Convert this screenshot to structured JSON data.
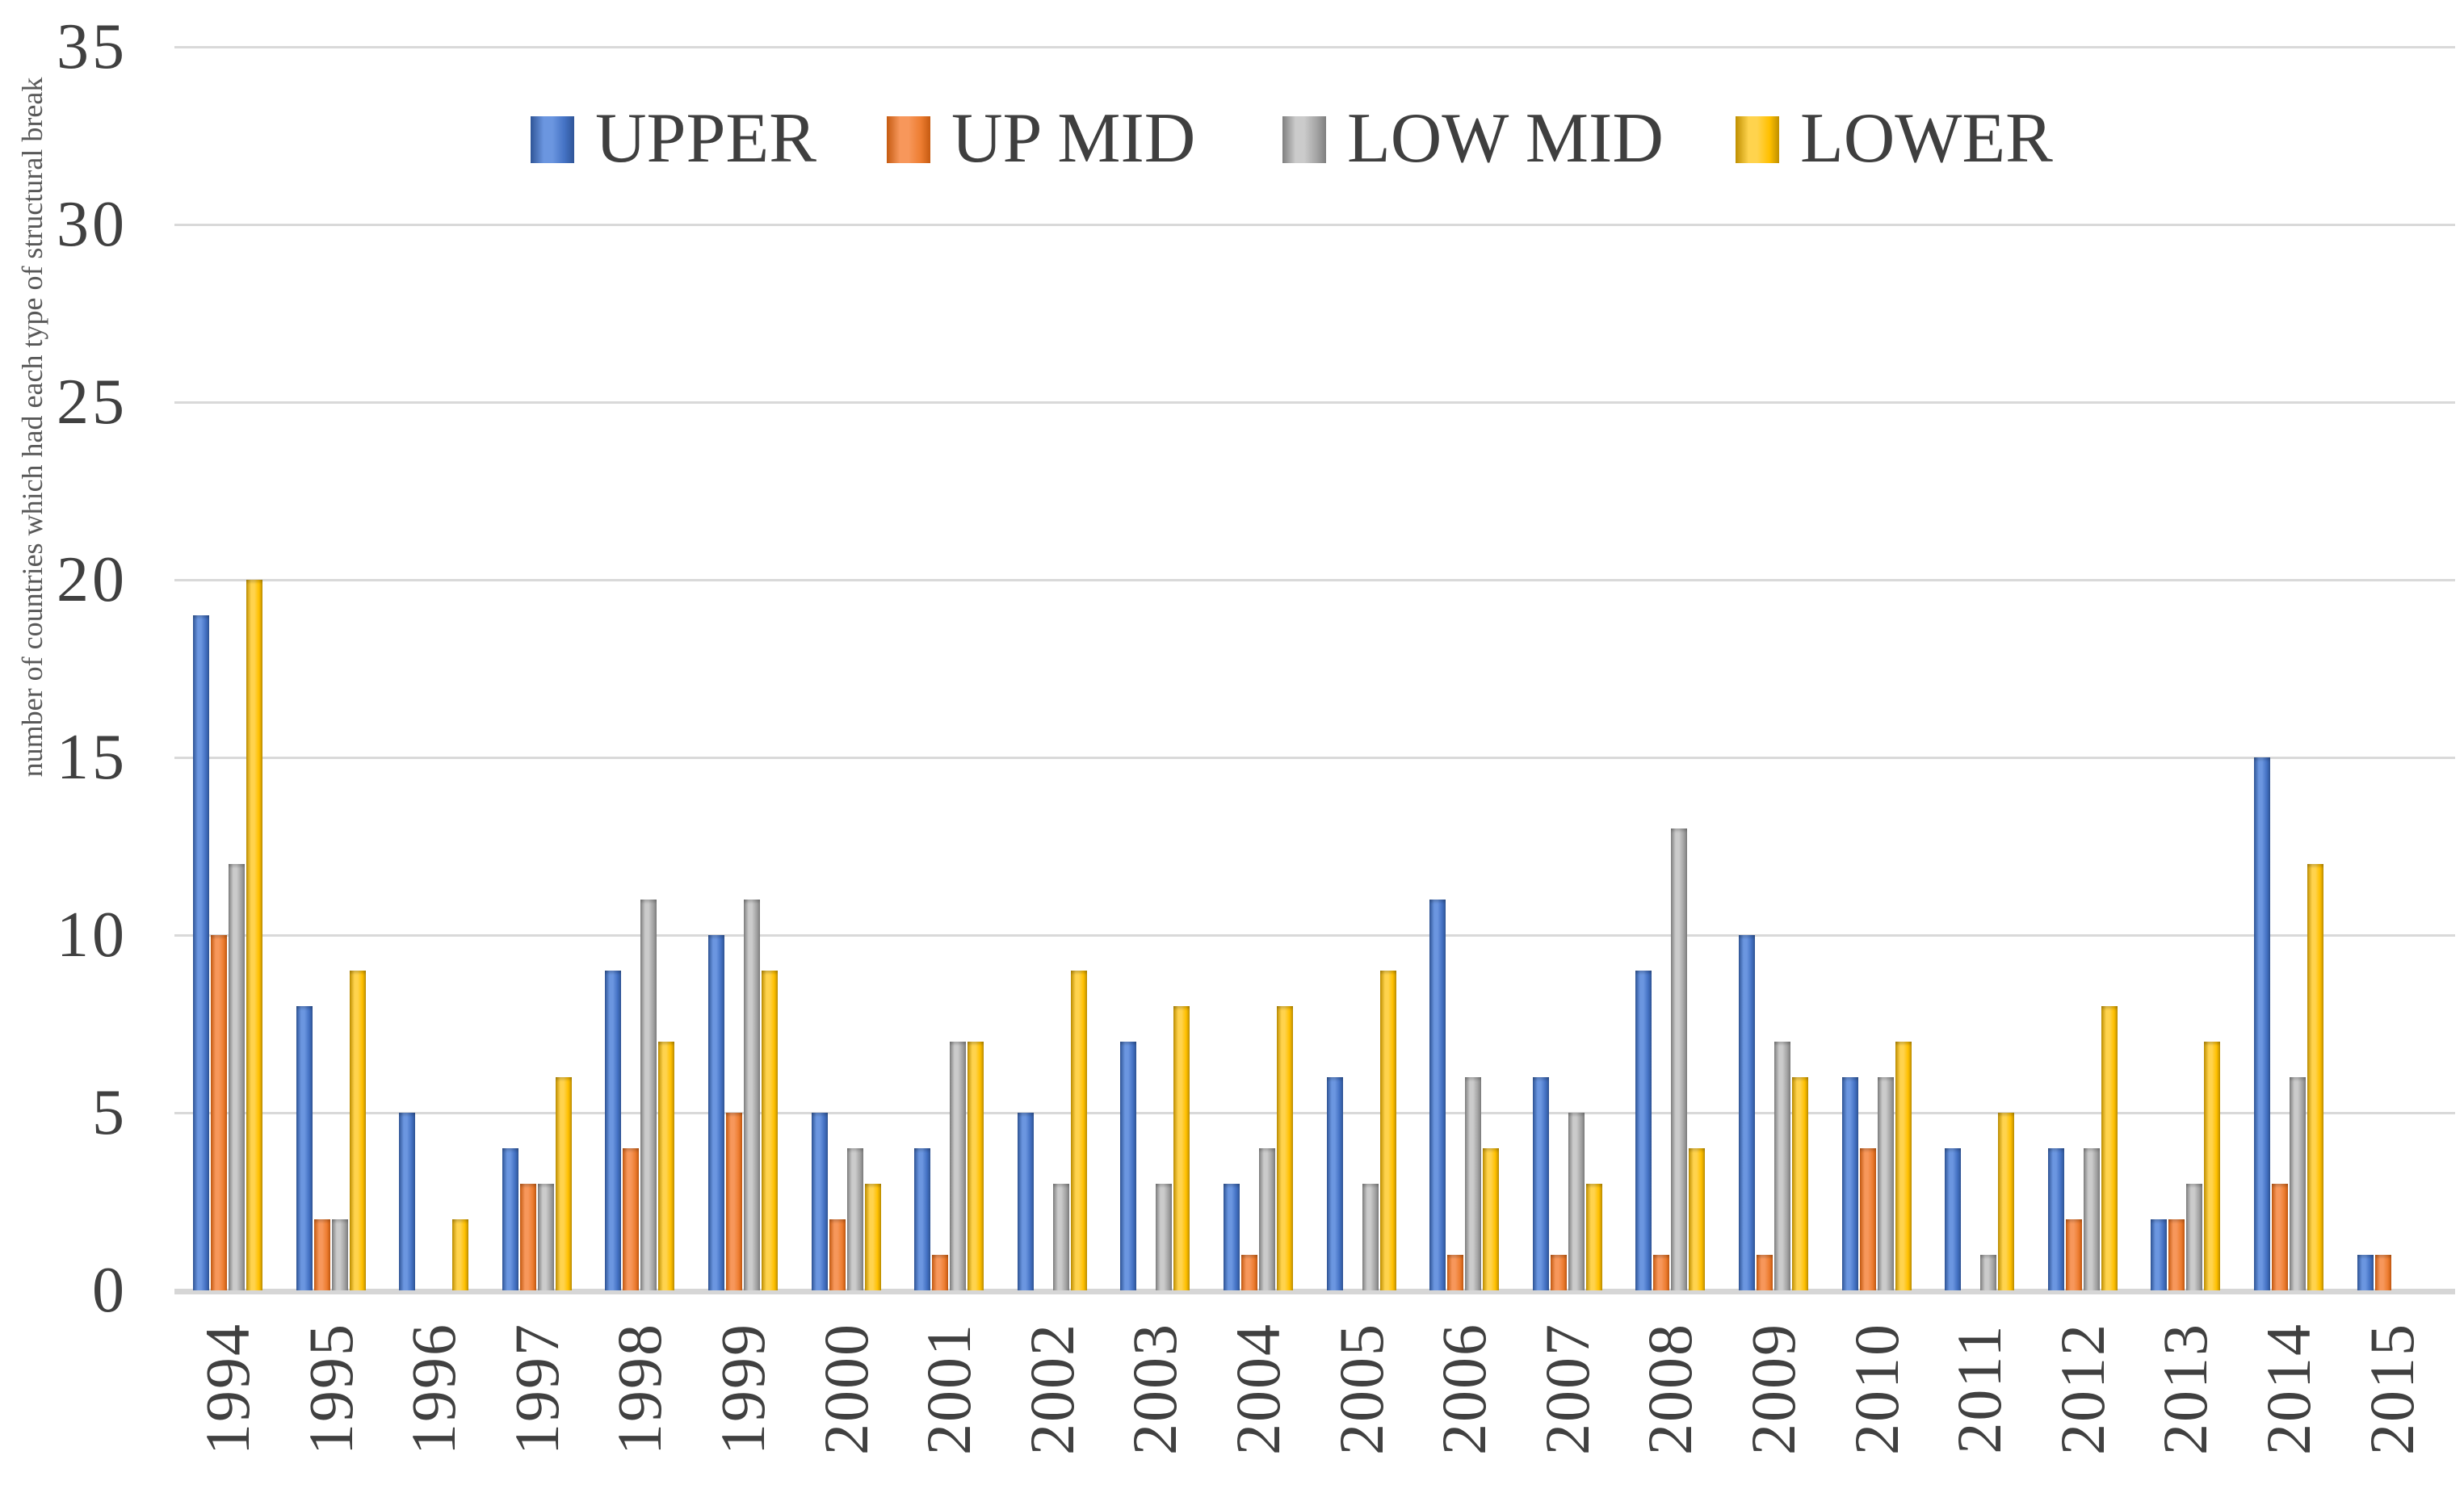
{
  "figure": {
    "background": "#ffffff",
    "gridline_color": "#d9d9d9",
    "text_color": "#404040"
  },
  "chart_data": {
    "type": "bar",
    "title": "",
    "xlabel": "",
    "ylabel": "number of countries which had each type of structural break",
    "ylim": [
      0,
      35
    ],
    "yticks": [
      0,
      5,
      10,
      15,
      20,
      25,
      30,
      35
    ],
    "grid": true,
    "legend_position": "top-center",
    "categories": [
      "1994",
      "1995",
      "1996",
      "1997",
      "1998",
      "1999",
      "2000",
      "2001",
      "2002",
      "2003",
      "2004",
      "2005",
      "2006",
      "2007",
      "2008",
      "2009",
      "2010",
      "2011",
      "2012",
      "2013",
      "2014",
      "2015"
    ],
    "series": [
      {
        "name": "UPPER",
        "color": "#4472C4",
        "color_dark": "#2F5597",
        "color_light": "#6B96E0",
        "values": [
          19,
          8,
          5,
          4,
          9,
          10,
          5,
          4,
          5,
          7,
          3,
          6,
          11,
          6,
          9,
          10,
          6,
          4,
          4,
          2,
          15,
          1
        ]
      },
      {
        "name": "UP MID",
        "color": "#ED7D31",
        "color_dark": "#C55A11",
        "color_light": "#F7975B",
        "values": [
          10,
          2,
          0,
          3,
          4,
          5,
          2,
          1,
          0,
          0,
          1,
          0,
          1,
          1,
          1,
          1,
          4,
          0,
          2,
          2,
          3,
          1
        ]
      },
      {
        "name": "LOW MID",
        "color": "#A5A5A5",
        "color_dark": "#7F7F7F",
        "color_light": "#CBCBCB",
        "values": [
          12,
          2,
          0,
          3,
          11,
          11,
          4,
          7,
          3,
          3,
          4,
          3,
          6,
          5,
          13,
          7,
          6,
          1,
          4,
          3,
          6,
          0
        ]
      },
      {
        "name": "LOWER",
        "color": "#FFC000",
        "color_dark": "#BF8F00",
        "color_light": "#FFD34D",
        "values": [
          20,
          9,
          2,
          6,
          7,
          9,
          3,
          7,
          9,
          8,
          8,
          9,
          4,
          3,
          4,
          6,
          7,
          5,
          8,
          7,
          12,
          0
        ]
      }
    ]
  }
}
